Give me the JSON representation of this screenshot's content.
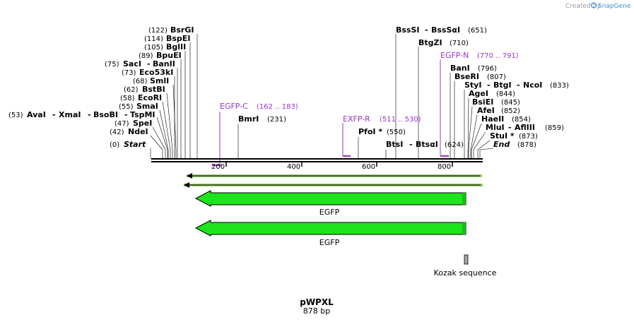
{
  "watermark": {
    "prefix": "Created by",
    "brand": "SnapGene"
  },
  "construct": {
    "name": "pWPXL",
    "length_label": "878 bp",
    "length_bp": 878
  },
  "ruler": {
    "ticks": [
      "200",
      "400",
      "600",
      "800"
    ]
  },
  "sites_left": [
    {
      "pos": "(122)",
      "names": [
        "BsrGI"
      ]
    },
    {
      "pos": "(114)",
      "names": [
        "BspEI"
      ]
    },
    {
      "pos": "(105)",
      "names": [
        "BglII"
      ]
    },
    {
      "pos": "(89)",
      "names": [
        "BpuEI"
      ]
    },
    {
      "pos": "(75)",
      "names": [
        "SacI",
        "BanII"
      ]
    },
    {
      "pos": "(73)",
      "names": [
        "Eco53kI"
      ]
    },
    {
      "pos": "(68)",
      "names": [
        "SmlI"
      ]
    },
    {
      "pos": "(62)",
      "names": [
        "BstBI"
      ]
    },
    {
      "pos": "(58)",
      "names": [
        "EcoRI"
      ]
    },
    {
      "pos": "(55)",
      "names": [
        "SmaI"
      ]
    },
    {
      "pos": "(53)",
      "names": [
        "AvaI",
        "XmaI",
        "BsoBI",
        "TspMI"
      ]
    },
    {
      "pos": "(47)",
      "names": [
        "SpeI"
      ]
    },
    {
      "pos": "(42)",
      "names": [
        "NdeI"
      ]
    },
    {
      "pos": "(0)",
      "names": [
        "Start"
      ]
    }
  ],
  "sites_middle": [
    {
      "pos": "(231)",
      "names": [
        "BmrI"
      ]
    },
    {
      "pos": "(550)",
      "names": [
        "PfoI *"
      ]
    },
    {
      "pos": "(624)",
      "names": [
        "BtsI",
        "BtsαI"
      ]
    },
    {
      "pos": "(651)",
      "names": [
        "BssSI",
        "BssSαI"
      ]
    },
    {
      "pos": "(710)",
      "names": [
        "BtgZI"
      ]
    }
  ],
  "sites_right": [
    {
      "pos": "(796)",
      "names": [
        "BanI"
      ]
    },
    {
      "pos": "(807)",
      "names": [
        "BseRI"
      ]
    },
    {
      "pos": "(833)",
      "names": [
        "StyI",
        "BtgI",
        "NcoI"
      ]
    },
    {
      "pos": "(844)",
      "names": [
        "AgeI"
      ]
    },
    {
      "pos": "(845)",
      "names": [
        "BsiEI"
      ]
    },
    {
      "pos": "(852)",
      "names": [
        "AfeI"
      ]
    },
    {
      "pos": "(854)",
      "names": [
        "HaeII"
      ]
    },
    {
      "pos": "(859)",
      "names": [
        "MluI",
        "AflIII"
      ]
    },
    {
      "pos": "(873)",
      "names": [
        "StuI *"
      ]
    },
    {
      "pos": "(878)",
      "names": [
        "End"
      ]
    }
  ],
  "primers": [
    {
      "name": "EGFP-C",
      "range": "(162 .. 183)"
    },
    {
      "name": "EXFP-R",
      "range": "(511 .. 530)"
    },
    {
      "name": "EGFP-N",
      "range": "(770 .. 791)"
    }
  ],
  "features": [
    {
      "name": "EGFP",
      "color": "#1ee41e",
      "direction": "reverse"
    },
    {
      "name": "EGFP",
      "color": "#1ee41e",
      "direction": "reverse"
    },
    {
      "name": "Kozak sequence",
      "color": "#a6a6a6"
    }
  ],
  "colors": {
    "primer": "#9933cc",
    "orf_arrow": "#99cc66",
    "feature_green": "#1ee41e",
    "brand_blue": "#3b8fd9"
  }
}
